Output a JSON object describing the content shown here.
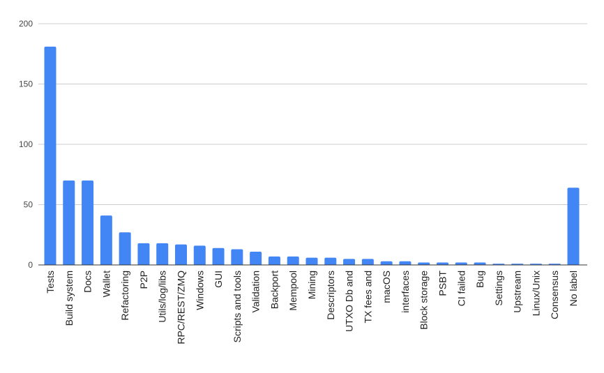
{
  "chart_data": {
    "type": "bar",
    "categories": [
      "Tests",
      "Build system",
      "Docs",
      "Wallet",
      "Refactoring",
      "P2P",
      "Utils/log/libs",
      "RPC/REST/ZMQ",
      "Windows",
      "GUI",
      "Scripts and tools",
      "Validation",
      "Backport",
      "Mempool",
      "Mining",
      "Descriptors",
      "UTXO Db and",
      "TX fees and",
      "macOS",
      "interfaces",
      "Block storage",
      "PSBT",
      "CI failed",
      "Bug",
      "Settings",
      "Upstream",
      "Linux/Unix",
      "Consensus",
      "No label"
    ],
    "values": [
      181,
      70,
      70,
      41,
      27,
      18,
      18,
      17,
      16,
      14,
      13,
      11,
      7,
      7,
      6,
      6,
      5,
      5,
      3,
      3,
      2,
      2,
      2,
      2,
      1,
      1,
      1,
      1,
      64
    ],
    "y_ticks": [
      0,
      50,
      100,
      150,
      200
    ],
    "ylim": [
      0,
      200
    ],
    "grid": true,
    "bar_color": "#4285f4"
  }
}
